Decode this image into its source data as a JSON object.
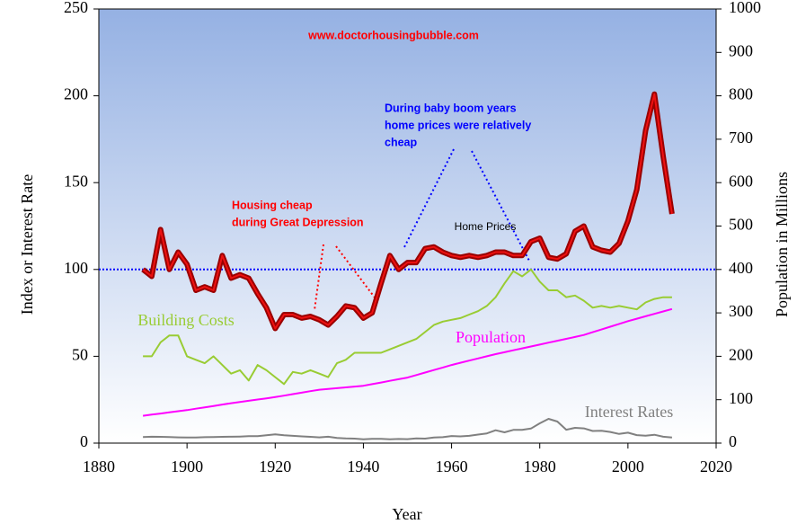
{
  "chart_data": {
    "type": "line",
    "x_label": "Year",
    "y_label": "Index or Interest Rate",
    "y2_label": "Population in Millions",
    "x": [
      1890,
      1892,
      1894,
      1896,
      1898,
      1900,
      1902,
      1904,
      1906,
      1908,
      1910,
      1912,
      1914,
      1916,
      1918,
      1920,
      1922,
      1924,
      1926,
      1928,
      1930,
      1932,
      1934,
      1936,
      1938,
      1940,
      1942,
      1944,
      1946,
      1948,
      1950,
      1952,
      1954,
      1956,
      1958,
      1960,
      1962,
      1964,
      1966,
      1968,
      1970,
      1972,
      1974,
      1976,
      1978,
      1980,
      1982,
      1984,
      1986,
      1988,
      1990,
      1992,
      1994,
      1996,
      1998,
      2000,
      2002,
      2004,
      2006,
      2008,
      2010
    ],
    "series": [
      {
        "name": "Home Prices",
        "color": "#990000",
        "values": [
          100,
          96,
          123,
          100,
          110,
          103,
          88,
          90,
          88,
          108,
          95,
          97,
          95,
          86,
          78,
          66,
          74,
          74,
          72,
          73,
          71,
          68,
          73,
          79,
          78,
          72,
          75,
          92,
          108,
          100,
          104,
          104,
          112,
          113,
          110,
          108,
          107,
          108,
          107,
          108,
          110,
          110,
          108,
          108,
          116,
          118,
          107,
          106,
          109,
          122,
          125,
          113,
          111,
          110,
          115,
          128,
          146,
          180,
          201,
          165,
          132
        ]
      },
      {
        "name": "Building Costs",
        "color": "#99cc33",
        "values": [
          50,
          50,
          58,
          62,
          62,
          50,
          48,
          46,
          50,
          45,
          40,
          42,
          36,
          45,
          42,
          38,
          34,
          41,
          40,
          42,
          40,
          38,
          46,
          48,
          52,
          52,
          52,
          52,
          54,
          56,
          58,
          60,
          64,
          68,
          70,
          71,
          72,
          74,
          76,
          79,
          84,
          92,
          99,
          96,
          100,
          93,
          88,
          88,
          84,
          85,
          82,
          78,
          79,
          78,
          79,
          78,
          77,
          81,
          83,
          84,
          84
        ]
      },
      {
        "name": "Population",
        "color": "#ff00ff",
        "axis": "y2",
        "values": [
          63,
          65.6,
          68.2,
          70.8,
          73.4,
          76,
          79.2,
          82.4,
          85.6,
          88.8,
          92,
          94.8,
          97.6,
          100.4,
          103.2,
          106,
          109.4,
          112.8,
          116.2,
          119.6,
          123,
          124.8,
          126.6,
          128.4,
          130.2,
          132,
          135.8,
          139.6,
          143.4,
          147.2,
          151,
          156.8,
          162.6,
          168.4,
          174.2,
          180,
          185,
          190,
          195,
          200,
          205,
          209.4,
          213.8,
          218.2,
          222.6,
          227,
          231.4,
          235.8,
          240.2,
          244.6,
          249,
          255.4,
          261.8,
          268.2,
          274.6,
          281,
          286.6,
          292.2,
          297.8,
          303.4,
          309
        ]
      },
      {
        "name": "Interest Rates",
        "color": "#808080",
        "values": [
          3.5,
          3.7,
          3.6,
          3.5,
          3.3,
          3.2,
          3.2,
          3.4,
          3.5,
          3.6,
          3.7,
          3.8,
          4.0,
          4.0,
          4.5,
          5.0,
          4.5,
          4.2,
          3.9,
          3.6,
          3.3,
          3.7,
          3.0,
          2.7,
          2.6,
          2.2,
          2.5,
          2.5,
          2.2,
          2.4,
          2.3,
          2.7,
          2.6,
          3.2,
          3.4,
          4.1,
          3.9,
          4.2,
          4.9,
          5.6,
          7.4,
          6.2,
          7.6,
          7.6,
          8.4,
          11.4,
          14.0,
          12.4,
          7.7,
          8.8,
          8.5,
          7.0,
          7.1,
          6.4,
          5.3,
          6.0,
          4.6,
          4.3,
          4.8,
          3.7,
          3.2
        ]
      }
    ],
    "xlim": [
      1880,
      2020
    ],
    "xticks": [
      1880,
      1900,
      1920,
      1940,
      1960,
      1980,
      2000,
      2020
    ],
    "ylim": [
      0,
      250
    ],
    "yticks": [
      0,
      50,
      100,
      150,
      200,
      250
    ],
    "y2lim": [
      0,
      1000
    ],
    "y2ticks": [
      0,
      100,
      200,
      300,
      400,
      500,
      600,
      700,
      800,
      900,
      1000
    ],
    "reference_line": {
      "value": 100,
      "color": "#0000ff"
    },
    "annotations": [
      {
        "text": "www.doctorhousingbubble.com",
        "color": "#ff0000"
      },
      {
        "text": "Housing cheap",
        "color": "#ff0000"
      },
      {
        "text": "during Great Depression",
        "color": "#ff0000"
      },
      {
        "text": "During baby boom years",
        "color": "#0000ff"
      },
      {
        "text": "home prices were relatively",
        "color": "#0000ff"
      },
      {
        "text": "cheap",
        "color": "#0000ff"
      }
    ]
  }
}
